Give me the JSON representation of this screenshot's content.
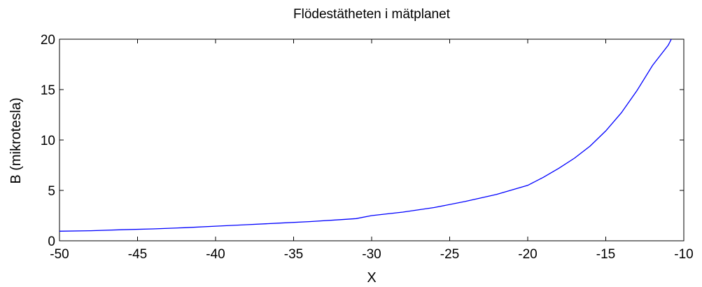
{
  "chart_data": {
    "type": "line",
    "title": "Flödestätheten i mätplanet",
    "xlabel": "X",
    "ylabel": "B (mikrotesla)",
    "xlim": [
      -50,
      -10
    ],
    "ylim": [
      0,
      20
    ],
    "xticks": [
      "-50",
      "-45",
      "-40",
      "-35",
      "-30",
      "-25",
      "-20",
      "-15",
      "-10"
    ],
    "yticks": [
      "0",
      "5",
      "10",
      "15",
      "20"
    ],
    "grid": false,
    "legend": "none",
    "series": [
      {
        "color": "#0000ff",
        "x": [
          -50,
          -48,
          -46,
          -44,
          -42,
          -40,
          -38,
          -36,
          -34,
          -32,
          -31,
          -30,
          -28,
          -26,
          -24,
          -22,
          -20,
          -19,
          -18,
          -17,
          -16,
          -15,
          -14,
          -13,
          -12,
          -11,
          -10.8
        ],
        "y": [
          0.95,
          1.0,
          1.1,
          1.18,
          1.3,
          1.45,
          1.6,
          1.75,
          1.9,
          2.1,
          2.2,
          2.5,
          2.85,
          3.3,
          3.9,
          4.6,
          5.5,
          6.3,
          7.2,
          8.2,
          9.4,
          10.9,
          12.7,
          14.9,
          17.4,
          19.4,
          20.0
        ]
      }
    ]
  }
}
